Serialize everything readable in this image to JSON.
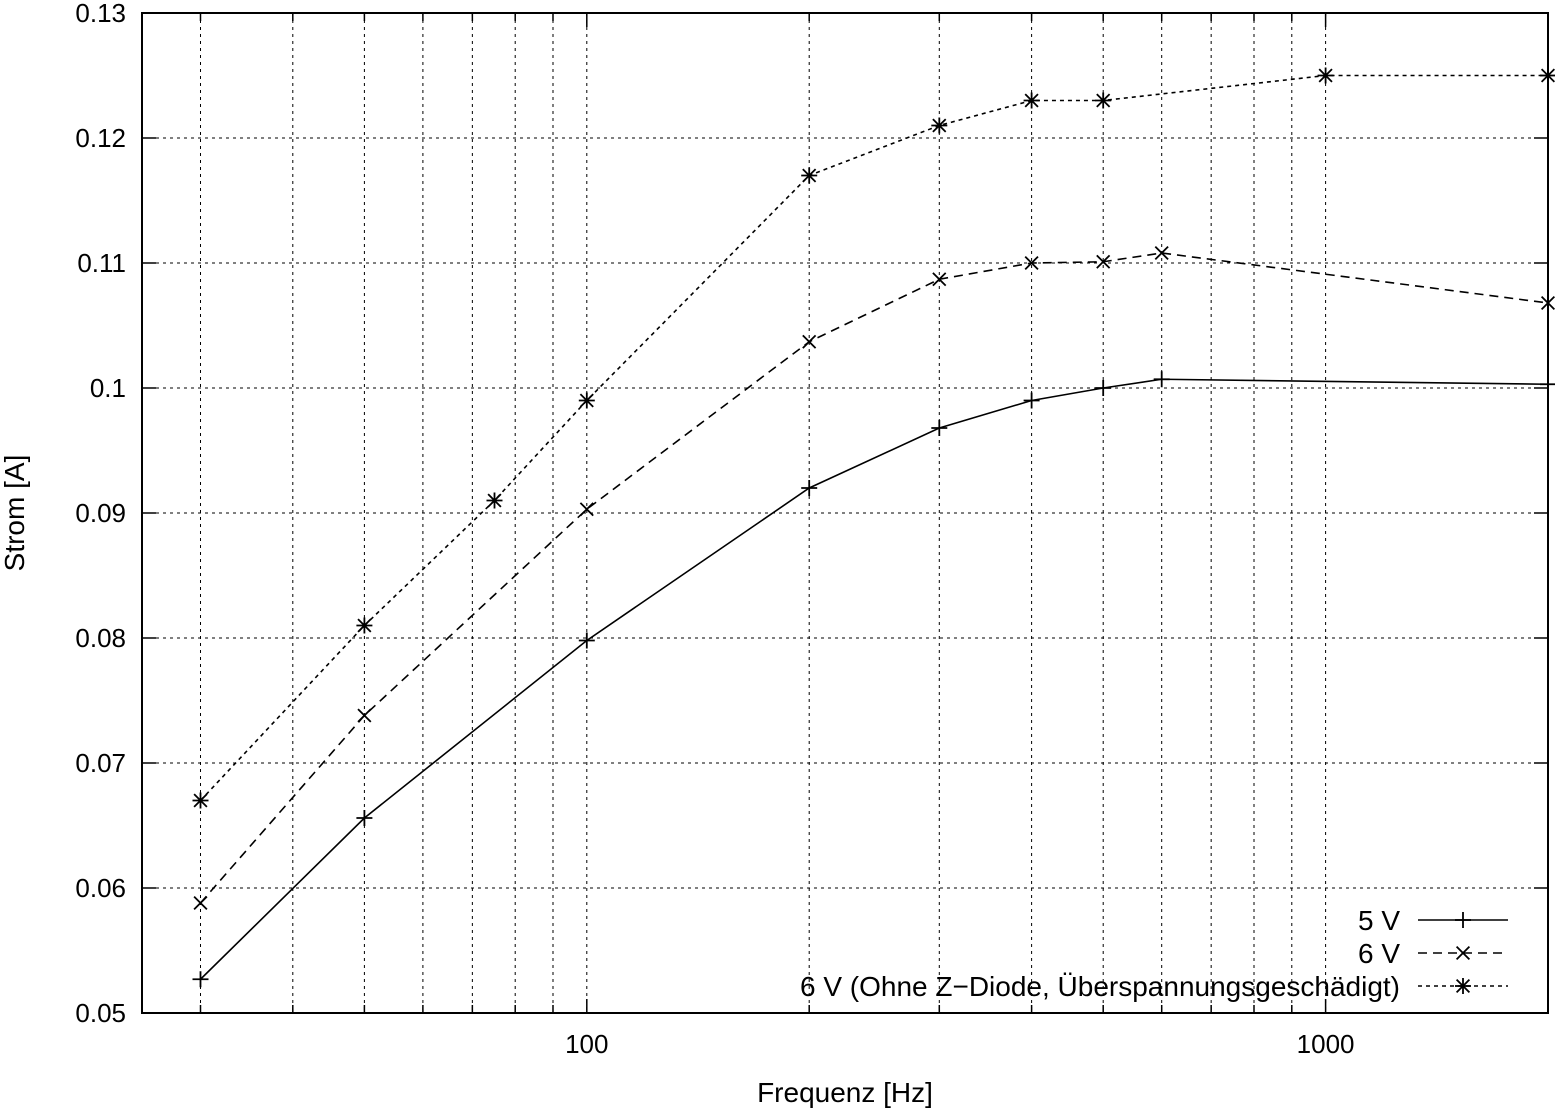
{
  "chart_data": {
    "type": "line",
    "xscale": "log",
    "xlim": [
      25,
      2000
    ],
    "ylim": [
      0.05,
      0.13
    ],
    "xlabel": "Frequenz [Hz]",
    "ylabel": "Strom [A]",
    "grid": true,
    "legend_position": "bottom-right",
    "x_ticks": [
      {
        "value": 100,
        "label": "100"
      },
      {
        "value": 1000,
        "label": "1000"
      }
    ],
    "y_ticks": [
      {
        "value": 0.05,
        "label": "0.05"
      },
      {
        "value": 0.06,
        "label": "0.06"
      },
      {
        "value": 0.07,
        "label": "0.07"
      },
      {
        "value": 0.08,
        "label": "0.08"
      },
      {
        "value": 0.09,
        "label": "0.09"
      },
      {
        "value": 0.1,
        "label": "0.1"
      },
      {
        "value": 0.11,
        "label": "0.11"
      },
      {
        "value": 0.12,
        "label": "0.12"
      },
      {
        "value": 0.13,
        "label": "0.13"
      }
    ],
    "series": [
      {
        "name": "5 V",
        "marker": "plus",
        "dash": "solid",
        "x": [
          30,
          50,
          100,
          200,
          300,
          400,
          500,
          600,
          2000
        ],
        "y": [
          0.0527,
          0.0656,
          0.0798,
          0.092,
          0.0968,
          0.099,
          0.1,
          0.1007,
          0.1003
        ]
      },
      {
        "name": "6 V",
        "marker": "cross",
        "dash": "dashed",
        "x": [
          30,
          50,
          100,
          200,
          300,
          400,
          500,
          600,
          2000
        ],
        "y": [
          0.0588,
          0.0738,
          0.0903,
          0.1037,
          0.1087,
          0.11,
          0.1101,
          0.1108,
          0.1068
        ]
      },
      {
        "name": "6 V (Ohne Z−Diode, Überspannungsgeschädigt)",
        "marker": "star",
        "dash": "dotted",
        "x": [
          30,
          50,
          75,
          100,
          200,
          300,
          400,
          500,
          1000,
          2000
        ],
        "y": [
          0.067,
          0.081,
          0.091,
          0.099,
          0.117,
          0.121,
          0.123,
          0.123,
          0.125,
          0.125
        ]
      }
    ]
  }
}
